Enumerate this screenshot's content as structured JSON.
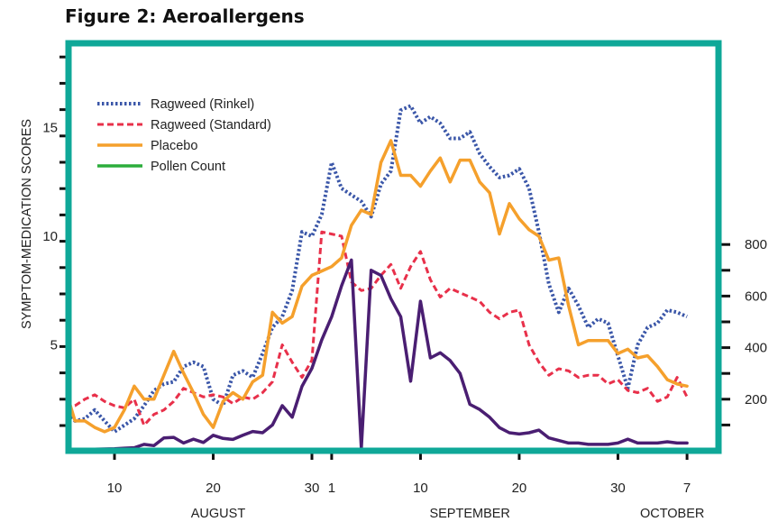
{
  "title": "Figure 2: Aeroallergens",
  "colors": {
    "frame": "#0fa898",
    "rinkel": "#3a56a8",
    "standard": "#e8304a",
    "placebo": "#f5a02c",
    "pollen_legend": "#2cad3c",
    "pollen_line": "#4a1e72"
  },
  "chart_data": {
    "type": "line",
    "title": "Figure 2: Aeroallergens",
    "ylabel": "SYMPTOM-MEDICATION SCORES",
    "ylim": [
      0,
      18
    ],
    "y_ticks": [
      5,
      10,
      15
    ],
    "y2lim": [
      0,
      1000
    ],
    "y2_ticks": [
      200,
      400,
      600,
      800
    ],
    "x_ticks": [
      {
        "day": 10,
        "label": "10"
      },
      {
        "day": 20,
        "label": "20"
      },
      {
        "day": 30,
        "label": "30"
      },
      {
        "day": 32,
        "label": "1"
      },
      {
        "day": 41,
        "label": "10"
      },
      {
        "day": 51,
        "label": "20"
      },
      {
        "day": 61,
        "label": "30"
      },
      {
        "day": 68,
        "label": "7"
      }
    ],
    "month_labels": [
      {
        "day": 20.5,
        "label": "AUGUST"
      },
      {
        "day": 46,
        "label": "SEPTEMBER"
      },
      {
        "day": 66.5,
        "label": "OCTOBER"
      }
    ],
    "x": [
      5,
      6,
      7,
      8,
      9,
      10,
      11,
      12,
      13,
      14,
      15,
      16,
      17,
      18,
      19,
      20,
      21,
      22,
      23,
      24,
      25,
      26,
      27,
      28,
      29,
      30,
      31,
      32,
      33,
      34,
      35,
      36,
      37,
      38,
      39,
      40,
      41,
      42,
      43,
      44,
      45,
      46,
      47,
      48,
      49,
      50,
      51,
      52,
      53,
      54,
      55,
      56,
      57,
      58,
      59,
      60,
      61,
      62,
      63,
      64,
      65,
      66,
      67,
      68
    ],
    "legend_position": "top-left",
    "series": [
      {
        "name": "Ragweed (Rinkel)",
        "style": "dotted",
        "axis": "left",
        "values": [
          2.0,
          1.5,
          1.6,
          2.0,
          1.5,
          1.0,
          1.3,
          1.6,
          2.2,
          2.9,
          3.2,
          3.3,
          4.0,
          4.2,
          4.0,
          2.5,
          2.2,
          3.6,
          3.8,
          3.5,
          4.6,
          5.8,
          6.3,
          7.5,
          10.2,
          10.0,
          11.0,
          13.4,
          12.2,
          11.9,
          11.6,
          10.9,
          12.4,
          13.0,
          15.8,
          16.0,
          15.2,
          15.5,
          15.2,
          14.5,
          14.5,
          14.8,
          13.8,
          13.2,
          12.7,
          12.8,
          13.1,
          12.2,
          10.2,
          7.8,
          6.5,
          7.6,
          6.8,
          5.8,
          6.2,
          6.0,
          4.5,
          3.0,
          5.0,
          5.8,
          6.0,
          6.6,
          6.5,
          6.3
        ]
      },
      {
        "name": "Ragweed (Standard)",
        "style": "dashed",
        "axis": "left",
        "values": [
          2.1,
          2.2,
          2.5,
          2.7,
          2.4,
          2.2,
          2.1,
          2.5,
          1.3,
          1.8,
          2.0,
          2.4,
          3.0,
          2.8,
          2.6,
          2.7,
          2.6,
          2.3,
          2.6,
          2.5,
          2.8,
          3.3,
          5.0,
          4.2,
          3.5,
          4.3,
          10.2,
          10.1,
          10.0,
          7.9,
          7.5,
          7.6,
          8.2,
          8.7,
          7.6,
          8.6,
          9.3,
          8.0,
          7.2,
          7.6,
          7.4,
          7.2,
          7.0,
          6.5,
          6.2,
          6.5,
          6.6,
          5.0,
          4.2,
          3.6,
          3.9,
          3.8,
          3.5,
          3.6,
          3.6,
          3.2,
          3.4,
          2.9,
          2.8,
          3.0,
          2.4,
          2.6,
          3.5,
          2.6
        ]
      },
      {
        "name": "Placebo",
        "style": "solid",
        "axis": "left",
        "values": [
          3.0,
          1.5,
          1.5,
          1.2,
          1.0,
          1.2,
          2.0,
          3.1,
          2.5,
          2.5,
          3.6,
          4.7,
          3.7,
          2.8,
          1.8,
          1.2,
          2.4,
          2.8,
          2.5,
          3.3,
          3.6,
          6.5,
          6.0,
          6.3,
          7.7,
          8.2,
          8.4,
          8.6,
          9.0,
          10.5,
          11.2,
          11.0,
          13.4,
          14.4,
          12.8,
          12.8,
          12.3,
          13.0,
          13.6,
          12.5,
          13.5,
          13.5,
          12.5,
          12.0,
          10.1,
          11.5,
          10.8,
          10.3,
          10.0,
          8.9,
          9.0,
          6.8,
          5.0,
          5.2,
          5.2,
          5.2,
          4.6,
          4.8,
          4.4,
          4.5,
          4.0,
          3.4,
          3.2,
          3.1
        ]
      },
      {
        "name": "Pollen Count",
        "style": "solid",
        "axis": "right",
        "values": [
          5,
          6,
          5,
          6,
          7,
          8,
          10,
          12,
          25,
          20,
          50,
          52,
          30,
          45,
          32,
          60,
          48,
          44,
          60,
          75,
          70,
          100,
          175,
          130,
          250,
          320,
          430,
          520,
          640,
          740,
          10,
          700,
          680,
          590,
          520,
          270,
          580,
          360,
          380,
          350,
          300,
          180,
          160,
          130,
          90,
          70,
          65,
          70,
          80,
          50,
          40,
          30,
          30,
          25,
          25,
          25,
          30,
          45,
          30,
          30,
          30,
          35,
          30,
          30
        ]
      }
    ]
  }
}
